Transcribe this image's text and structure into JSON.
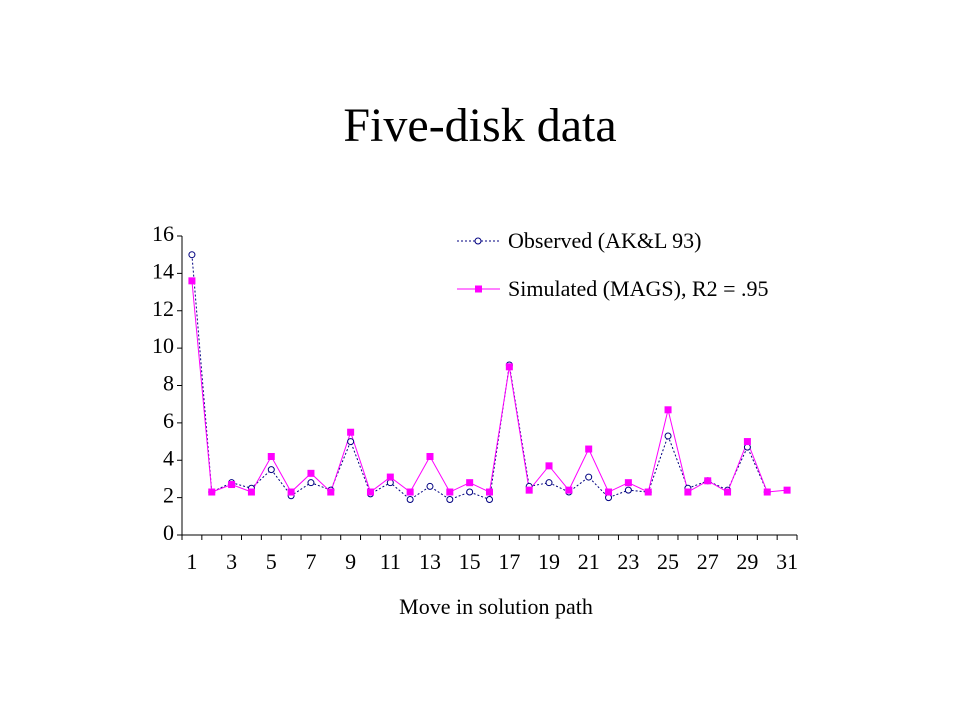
{
  "chart_data": {
    "type": "line",
    "title": "Five-disk data",
    "x_label": "Move in solution path",
    "categories": [
      "1",
      null,
      "3",
      null,
      "5",
      null,
      "7",
      null,
      "9",
      null,
      "11",
      null,
      "13",
      null,
      "15",
      null,
      "17",
      null,
      "19",
      null,
      "21",
      null,
      "23",
      null,
      "25",
      null,
      "27",
      null,
      "29",
      null,
      "31"
    ],
    "series": [
      {
        "name": "Observed (AK&L 93)",
        "color": "#000080",
        "marker": "open-circle",
        "dashed": true,
        "values": [
          15.0,
          2.3,
          2.8,
          2.5,
          3.5,
          2.1,
          2.8,
          2.4,
          5.0,
          2.2,
          2.8,
          1.9,
          2.6,
          1.9,
          2.3,
          1.9,
          9.1,
          2.6,
          2.8,
          2.3,
          3.1,
          2.0,
          2.4,
          2.3,
          5.3,
          2.5,
          2.9,
          2.4,
          4.7,
          2.3,
          null
        ]
      },
      {
        "name": "Simulated (MAGS), R2 = .95",
        "color": "#ff00ff",
        "marker": "square",
        "dashed": false,
        "values": [
          13.6,
          2.3,
          2.7,
          2.3,
          4.2,
          2.3,
          3.3,
          2.3,
          5.5,
          2.3,
          3.1,
          2.3,
          4.2,
          2.3,
          2.8,
          2.3,
          9.0,
          2.4,
          3.7,
          2.4,
          4.6,
          2.3,
          2.8,
          2.3,
          6.7,
          2.3,
          2.9,
          2.3,
          5.0,
          2.3,
          2.4
        ]
      }
    ],
    "ylim": [
      0,
      16
    ],
    "yticks": [
      0,
      2,
      4,
      6,
      8,
      10,
      12,
      14,
      16
    ],
    "grid": false,
    "legend": "top-right"
  }
}
